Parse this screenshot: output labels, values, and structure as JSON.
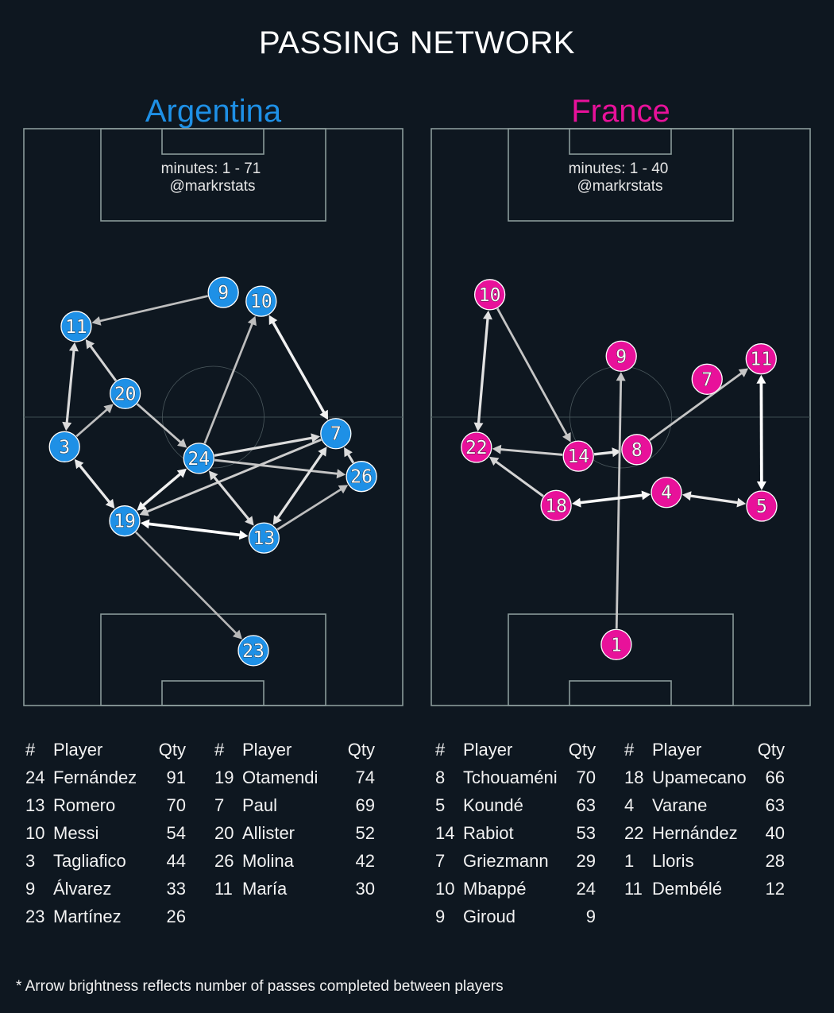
{
  "title": "PASSING NETWORK",
  "footnote": "* Arrow brightness reflects number of passes completed between players",
  "colors": {
    "background": "#0e1720",
    "pitch_lines": "#8a9a9a",
    "argentina": "#1e90e6",
    "france": "#e8119a"
  },
  "chart_data": {
    "type": "network",
    "pitch_units": "meters (68 wide x 105 long, y measured from own goal line, attacking upward)",
    "teams": [
      {
        "name": "Argentina",
        "color": "#1e90e6",
        "minutes": "minutes: 1 - 71",
        "credit": "@markrstats",
        "nodes": [
          {
            "num": "9",
            "x": 35.8,
            "y": 75.2
          },
          {
            "num": "10",
            "x": 42.6,
            "y": 73.6
          },
          {
            "num": "11",
            "x": 9.4,
            "y": 69.0
          },
          {
            "num": "20",
            "x": 18.2,
            "y": 56.8
          },
          {
            "num": "3",
            "x": 7.3,
            "y": 47.1
          },
          {
            "num": "24",
            "x": 31.4,
            "y": 45.0
          },
          {
            "num": "7",
            "x": 56.0,
            "y": 49.5
          },
          {
            "num": "26",
            "x": 60.6,
            "y": 41.7
          },
          {
            "num": "19",
            "x": 18.1,
            "y": 33.6
          },
          {
            "num": "13",
            "x": 43.1,
            "y": 30.5
          },
          {
            "num": "23",
            "x": 41.2,
            "y": 10.0
          }
        ],
        "edges": [
          {
            "from": "9",
            "to": "11",
            "both": false,
            "brightness": 0.55
          },
          {
            "from": "24",
            "to": "10",
            "both": false,
            "brightness": 0.55
          },
          {
            "from": "10",
            "to": "7",
            "both": true,
            "brightness": 0.9
          },
          {
            "from": "11",
            "to": "3",
            "both": true,
            "brightness": 0.75
          },
          {
            "from": "20",
            "to": "11",
            "both": false,
            "brightness": 0.7
          },
          {
            "from": "3",
            "to": "20",
            "both": false,
            "brightness": 0.55
          },
          {
            "from": "20",
            "to": "24",
            "both": false,
            "brightness": 0.6
          },
          {
            "from": "3",
            "to": "19",
            "both": true,
            "brightness": 0.85
          },
          {
            "from": "24",
            "to": "7",
            "both": false,
            "brightness": 0.75
          },
          {
            "from": "7",
            "to": "19",
            "both": false,
            "brightness": 0.65
          },
          {
            "from": "24",
            "to": "26",
            "both": false,
            "brightness": 0.6
          },
          {
            "from": "26",
            "to": "7",
            "both": false,
            "brightness": 0.75
          },
          {
            "from": "19",
            "to": "24",
            "both": true,
            "brightness": 0.9
          },
          {
            "from": "24",
            "to": "13",
            "both": true,
            "brightness": 0.75
          },
          {
            "from": "13",
            "to": "7",
            "both": true,
            "brightness": 0.8
          },
          {
            "from": "13",
            "to": "26",
            "both": false,
            "brightness": 0.55
          },
          {
            "from": "19",
            "to": "13",
            "both": true,
            "brightness": 1.0
          },
          {
            "from": "19",
            "to": "23",
            "both": false,
            "brightness": 0.5
          }
        ],
        "table": {
          "headers": [
            "#",
            "Player",
            "Qty"
          ],
          "columns": [
            [
              {
                "num": "24",
                "name": "Fernández",
                "qty": "91"
              },
              {
                "num": "13",
                "name": "Romero",
                "qty": "70"
              },
              {
                "num": "10",
                "name": "Messi",
                "qty": "54"
              },
              {
                "num": "3",
                "name": "Tagliafico",
                "qty": "44"
              },
              {
                "num": "9",
                "name": "Álvarez",
                "qty": "33"
              },
              {
                "num": "23",
                "name": "Martínez",
                "qty": "26"
              }
            ],
            [
              {
                "num": "19",
                "name": "Otamendi",
                "qty": "74"
              },
              {
                "num": "7",
                "name": "Paul",
                "qty": "69"
              },
              {
                "num": "20",
                "name": "Allister",
                "qty": "52"
              },
              {
                "num": "26",
                "name": "Molina",
                "qty": "42"
              },
              {
                "num": "11",
                "name": "María",
                "qty": "30"
              }
            ]
          ]
        }
      },
      {
        "name": "France",
        "color": "#e8119a",
        "minutes": "minutes: 1 - 40",
        "credit": "@markrstats",
        "nodes": [
          {
            "num": "10",
            "x": 10.5,
            "y": 74.8
          },
          {
            "num": "9",
            "x": 34.1,
            "y": 63.6
          },
          {
            "num": "11",
            "x": 59.2,
            "y": 63.1
          },
          {
            "num": "7",
            "x": 49.5,
            "y": 59.4
          },
          {
            "num": "22",
            "x": 8.1,
            "y": 47.0
          },
          {
            "num": "14",
            "x": 26.4,
            "y": 45.4
          },
          {
            "num": "8",
            "x": 36.9,
            "y": 46.6
          },
          {
            "num": "18",
            "x": 22.4,
            "y": 36.4
          },
          {
            "num": "4",
            "x": 42.2,
            "y": 38.8
          },
          {
            "num": "5",
            "x": 59.3,
            "y": 36.3
          },
          {
            "num": "1",
            "x": 33.2,
            "y": 11.1
          }
        ],
        "edges": [
          {
            "from": "10",
            "to": "22",
            "both": true,
            "brightness": 0.8
          },
          {
            "from": "10",
            "to": "14",
            "both": false,
            "brightness": 0.6
          },
          {
            "from": "14",
            "to": "22",
            "both": false,
            "brightness": 0.65
          },
          {
            "from": "14",
            "to": "8",
            "both": false,
            "brightness": 0.85
          },
          {
            "from": "1",
            "to": "9",
            "both": false,
            "brightness": 0.6
          },
          {
            "from": "8",
            "to": "11",
            "both": false,
            "brightness": 0.6
          },
          {
            "from": "11",
            "to": "5",
            "both": true,
            "brightness": 1.0
          },
          {
            "from": "18",
            "to": "22",
            "both": false,
            "brightness": 0.7
          },
          {
            "from": "18",
            "to": "4",
            "both": true,
            "brightness": 0.95
          },
          {
            "from": "4",
            "to": "5",
            "both": true,
            "brightness": 0.85
          }
        ],
        "table": {
          "headers": [
            "#",
            "Player",
            "Qty"
          ],
          "columns": [
            [
              {
                "num": "8",
                "name": "Tchouaméni",
                "qty": "70"
              },
              {
                "num": "5",
                "name": "Koundé",
                "qty": "63"
              },
              {
                "num": "14",
                "name": "Rabiot",
                "qty": "53"
              },
              {
                "num": "7",
                "name": "Griezmann",
                "qty": "29"
              },
              {
                "num": "10",
                "name": "Mbappé",
                "qty": "24"
              },
              {
                "num": "9",
                "name": "Giroud",
                "qty": "9"
              }
            ],
            [
              {
                "num": "18",
                "name": "Upamecano",
                "qty": "66"
              },
              {
                "num": "4",
                "name": "Varane",
                "qty": "63"
              },
              {
                "num": "22",
                "name": "Hernández",
                "qty": "40"
              },
              {
                "num": "1",
                "name": "Lloris",
                "qty": "28"
              },
              {
                "num": "11",
                "name": "Dembélé",
                "qty": "12"
              }
            ]
          ]
        }
      }
    ]
  }
}
